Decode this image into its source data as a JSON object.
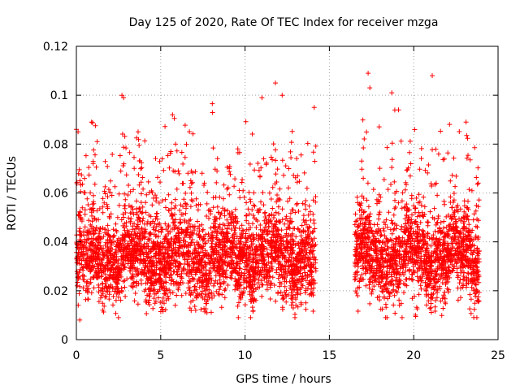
{
  "chart_data": {
    "type": "scatter",
    "title": "Day 125 of 2020, Rate Of TEC Index for receiver mzga",
    "xlabel": "GPS time / hours",
    "ylabel": "ROTI / TECUs",
    "xlim": [
      0,
      25
    ],
    "ylim": [
      0,
      0.12
    ],
    "xticks": [
      0,
      5,
      10,
      15,
      20,
      25
    ],
    "xtick_labels": [
      "0",
      "5",
      "10",
      "15",
      "20",
      "25"
    ],
    "yticks": [
      0,
      0.02,
      0.04,
      0.06,
      0.08,
      0.1,
      0.12
    ],
    "ytick_labels": [
      "0",
      "0.02",
      "0.04",
      "0.06",
      "0.08",
      "0.1",
      "0.12"
    ],
    "grid": true,
    "marker": "plus",
    "color": "#ff0000",
    "series": [
      {
        "name": "ROTI",
        "segments": [
          {
            "x_start": 0.0,
            "x_end": 14.2,
            "typical_low": 0.015,
            "typical_high": 0.06,
            "median": 0.033
          },
          {
            "x_start": 16.5,
            "x_end": 23.9,
            "typical_low": 0.015,
            "typical_high": 0.06,
            "median": 0.033
          }
        ],
        "gap": [
          14.2,
          16.5
        ],
        "notable_points": [
          {
            "x": 0.0,
            "y": 0.086
          },
          {
            "x": 0.1,
            "y": 0.085
          },
          {
            "x": 0.9,
            "y": 0.089
          },
          {
            "x": 2.7,
            "y": 0.1
          },
          {
            "x": 2.8,
            "y": 0.099
          },
          {
            "x": 5.7,
            "y": 0.092
          },
          {
            "x": 11.0,
            "y": 0.099
          },
          {
            "x": 11.8,
            "y": 0.105
          },
          {
            "x": 12.2,
            "y": 0.1
          },
          {
            "x": 14.1,
            "y": 0.095
          },
          {
            "x": 17.3,
            "y": 0.109
          },
          {
            "x": 17.4,
            "y": 0.103
          },
          {
            "x": 18.7,
            "y": 0.101
          },
          {
            "x": 19.1,
            "y": 0.094
          },
          {
            "x": 21.1,
            "y": 0.108
          },
          {
            "x": 23.1,
            "y": 0.089
          },
          {
            "x": 0.2,
            "y": 0.008
          },
          {
            "x": 9.6,
            "y": 0.009
          },
          {
            "x": 20.1,
            "y": 0.01
          }
        ]
      }
    ]
  }
}
